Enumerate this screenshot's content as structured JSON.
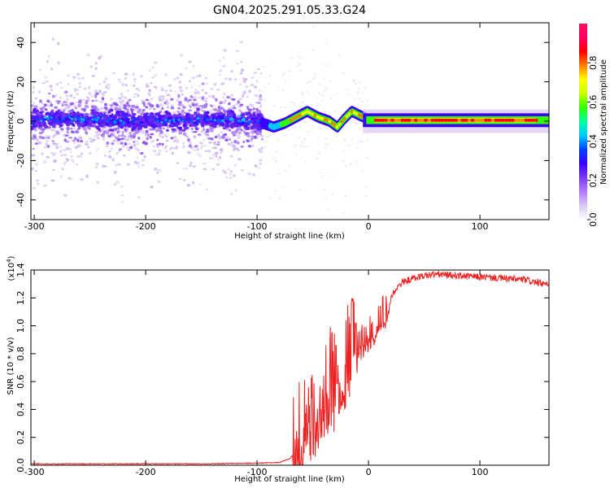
{
  "title": "GN04.2025.291.05.33.G24",
  "chart_data": [
    {
      "type": "heatmap",
      "xlabel": "Height of straight line (km)",
      "ylabel": "Frequency (Hz)",
      "xlim": [
        -303,
        162
      ],
      "ylim": [
        -50,
        50
      ],
      "xticks": [
        -300,
        -200,
        -100,
        0,
        100
      ],
      "yticks": [
        -40,
        -20,
        0,
        20,
        40
      ],
      "colorbar": {
        "label": "Normalized spectral amplitude",
        "range": [
          0.0,
          1.0
        ],
        "ticks": [
          "0.0",
          "0.2",
          "0.4",
          "0.6",
          "0.8"
        ],
        "colormap": [
          "#ffffff",
          "#d8c8f2",
          "#b27aff",
          "#7a3cf0",
          "#3a00ff",
          "#0040ff",
          "#00c8ff",
          "#00ffa0",
          "#30ff00",
          "#c8ff00",
          "#ffff00",
          "#ff8000",
          "#ff0000",
          "#ff0060",
          "#ff1060"
        ]
      },
      "ridge_center_hz": [
        {
          "x": -300,
          "y": 1
        },
        {
          "x": -250,
          "y": 1
        },
        {
          "x": -200,
          "y": 0
        },
        {
          "x": -150,
          "y": 1
        },
        {
          "x": -100,
          "y": 0
        },
        {
          "x": -85,
          "y": -3
        },
        {
          "x": -75,
          "y": -1
        },
        {
          "x": -65,
          "y": 2
        },
        {
          "x": -55,
          "y": 5
        },
        {
          "x": -45,
          "y": 2
        },
        {
          "x": -35,
          "y": 0
        },
        {
          "x": -28,
          "y": -3
        },
        {
          "x": -22,
          "y": 1
        },
        {
          "x": -15,
          "y": 5
        },
        {
          "x": -8,
          "y": 3
        },
        {
          "x": 0,
          "y": 1
        },
        {
          "x": 50,
          "y": 1
        },
        {
          "x": 100,
          "y": 1
        },
        {
          "x": 162,
          "y": 0
        }
      ]
    },
    {
      "type": "line",
      "xlabel": "Height of straight line (km)",
      "ylabel": "SNR (10 * v/v)",
      "y_multiplier": "(x10",
      "y_multiplier_exp": "4",
      "xlim": [
        -303,
        162
      ],
      "ylim": [
        0,
        1.4
      ],
      "xticks": [
        -300,
        -200,
        -100,
        0,
        100
      ],
      "yticks": [
        "0.0",
        "0.2",
        "0.4",
        "0.6",
        "0.8",
        "1.0",
        "1.2",
        "1.4"
      ],
      "line_color": "#ee2222",
      "series": [
        {
          "points": [
            [
              -303,
              0.01
            ],
            [
              -250,
              0.01
            ],
            [
              -200,
              0.01
            ],
            [
              -150,
              0.01
            ],
            [
              -100,
              0.015
            ],
            [
              -80,
              0.02
            ],
            [
              -70,
              0.05
            ],
            [
              -62,
              0.15
            ],
            [
              -58,
              0.35
            ],
            [
              -55,
              0.45
            ],
            [
              -50,
              0.35
            ],
            [
              -45,
              0.35
            ],
            [
              -40,
              0.5
            ],
            [
              -35,
              0.6
            ],
            [
              -30,
              0.6
            ],
            [
              -25,
              0.7
            ],
            [
              -20,
              0.75
            ],
            [
              -15,
              0.82
            ],
            [
              -10,
              0.85
            ],
            [
              -5,
              0.88
            ],
            [
              0,
              0.92
            ],
            [
              5,
              0.98
            ],
            [
              10,
              1.05
            ],
            [
              15,
              1.1
            ],
            [
              20,
              1.2
            ],
            [
              25,
              1.27
            ],
            [
              30,
              1.31
            ],
            [
              40,
              1.34
            ],
            [
              50,
              1.36
            ],
            [
              60,
              1.37
            ],
            [
              80,
              1.36
            ],
            [
              100,
              1.35
            ],
            [
              120,
              1.34
            ],
            [
              140,
              1.33
            ],
            [
              162,
              1.29
            ]
          ]
        }
      ]
    }
  ]
}
